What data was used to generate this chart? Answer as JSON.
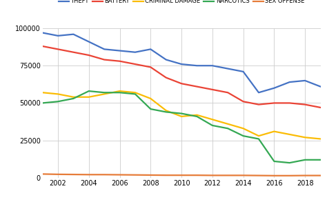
{
  "years": [
    2001,
    2002,
    2003,
    2004,
    2005,
    2006,
    2007,
    2008,
    2009,
    2010,
    2011,
    2012,
    2013,
    2014,
    2015,
    2016,
    2017,
    2018,
    2019
  ],
  "theft": [
    97000,
    95000,
    96000,
    91000,
    86000,
    85000,
    84000,
    86000,
    79000,
    76000,
    75000,
    75000,
    73000,
    71000,
    57000,
    60000,
    64000,
    65000,
    61000
  ],
  "battery": [
    88000,
    86000,
    84000,
    82000,
    79000,
    78000,
    76000,
    74000,
    67000,
    63000,
    61000,
    59000,
    57000,
    51000,
    49000,
    50000,
    50000,
    49000,
    47000
  ],
  "criminal_damage": [
    57000,
    56000,
    54000,
    54000,
    56000,
    58000,
    57000,
    53000,
    45000,
    41000,
    42000,
    39000,
    36000,
    33000,
    28000,
    31000,
    29000,
    27000,
    26000
  ],
  "narcotics": [
    50000,
    51000,
    53000,
    58000,
    57000,
    57000,
    56000,
    46000,
    44000,
    43000,
    41000,
    35000,
    33000,
    28000,
    26000,
    11000,
    10000,
    12000,
    12000
  ],
  "sex_offense": [
    2500,
    2300,
    2200,
    2100,
    2100,
    2000,
    1900,
    1800,
    1700,
    1700,
    1700,
    1600,
    1600,
    1600,
    1500,
    1400,
    1400,
    1500,
    1500
  ],
  "colors": {
    "theft": "#4472C4",
    "battery": "#EA4335",
    "criminal_damage": "#FBBC04",
    "narcotics": "#34A853",
    "sex_offense": "#E67C39"
  },
  "legend_labels": {
    "theft": "THEFT",
    "battery": "BATTERY",
    "criminal_damage": "CRIMINAL DAMAGE",
    "narcotics": "NARCOTICS",
    "sex_offense": "SEX OFFENSE"
  },
  "ylim": [
    0,
    100000
  ],
  "yticks": [
    0,
    25000,
    50000,
    75000,
    100000
  ],
  "ytick_labels": [
    "0",
    "25000",
    "50000",
    "75000",
    "100000"
  ],
  "xtick_years": [
    2002,
    2004,
    2006,
    2008,
    2010,
    2012,
    2014,
    2016,
    2018
  ],
  "background_color": "#ffffff",
  "grid_color": "#cccccc",
  "line_width": 1.6
}
